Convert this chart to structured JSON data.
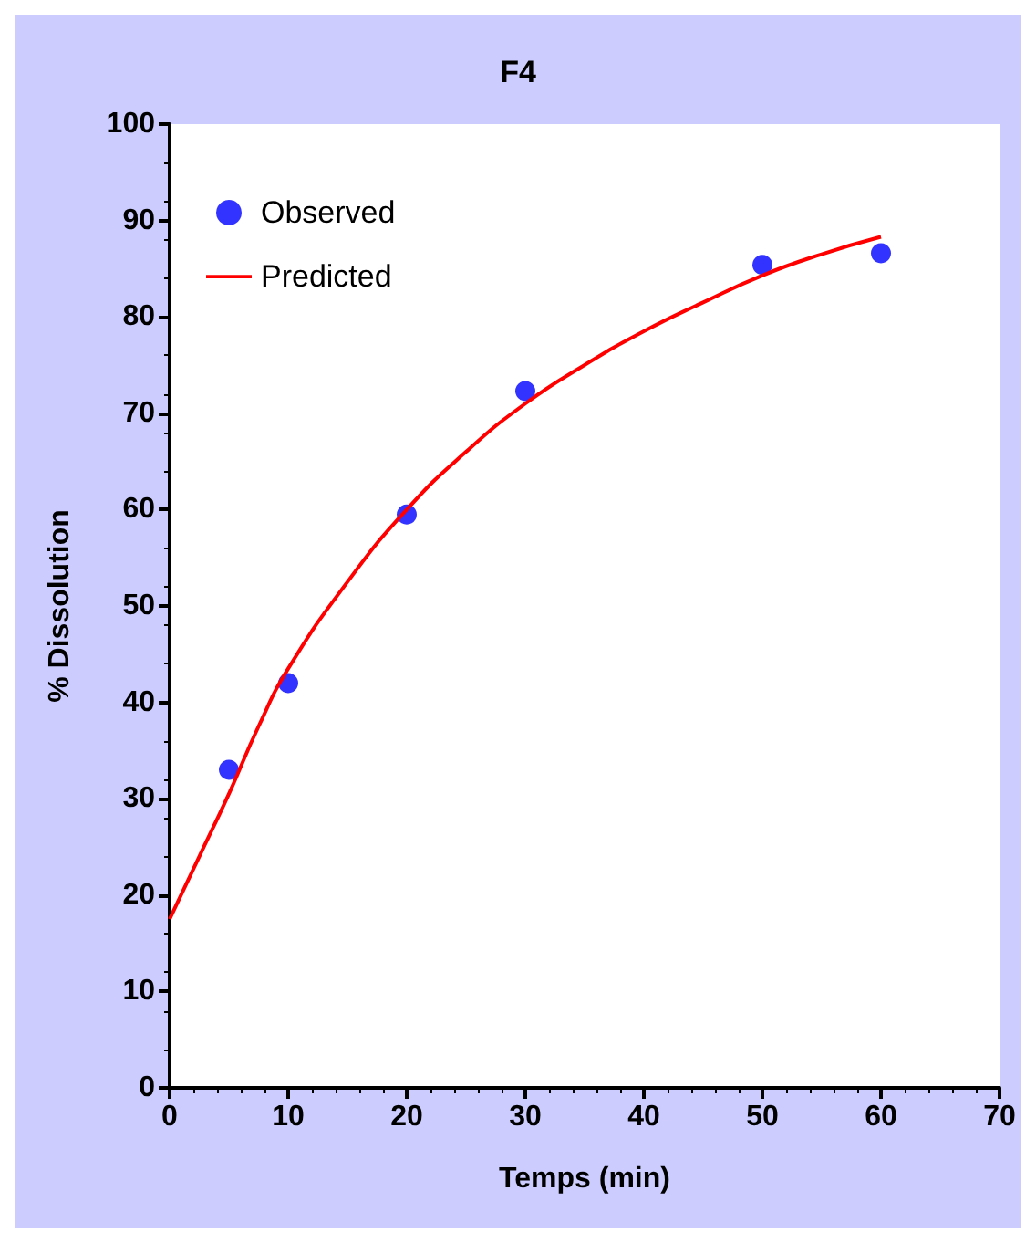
{
  "chart_data": {
    "type": "scatter",
    "title": "F4",
    "xlabel": "Temps (min)",
    "ylabel": "% Dissolution",
    "xlim": [
      0,
      70
    ],
    "xticks": [
      0,
      10,
      20,
      30,
      40,
      50,
      60,
      70
    ],
    "ylim": [
      0,
      100
    ],
    "yticks": [
      0,
      10,
      20,
      30,
      40,
      50,
      60,
      70,
      80,
      90,
      100
    ],
    "grid": false,
    "legend": "top left",
    "marker": "circle",
    "series": [
      {
        "name": "Observed",
        "color": "#0000ff",
        "x": [
          5,
          10,
          20,
          30,
          50,
          60
        ],
        "values": [
          33,
          42,
          59.5,
          72.3,
          85.4,
          86.6
        ]
      },
      {
        "name": "Predicted",
        "type": "line",
        "color": "#ff0000",
        "marker": "none",
        "line_style": "solid",
        "x": [
          0,
          2.5,
          5,
          7.5,
          10,
          15,
          20,
          25,
          30,
          35,
          40,
          45,
          50,
          55,
          60
        ],
        "values": [
          17.5,
          24,
          30.5,
          37.5,
          43.5,
          52.5,
          60,
          66,
          71,
          75,
          78.5,
          81.5,
          84.3,
          86.5,
          88.3
        ]
      }
    ]
  }
}
